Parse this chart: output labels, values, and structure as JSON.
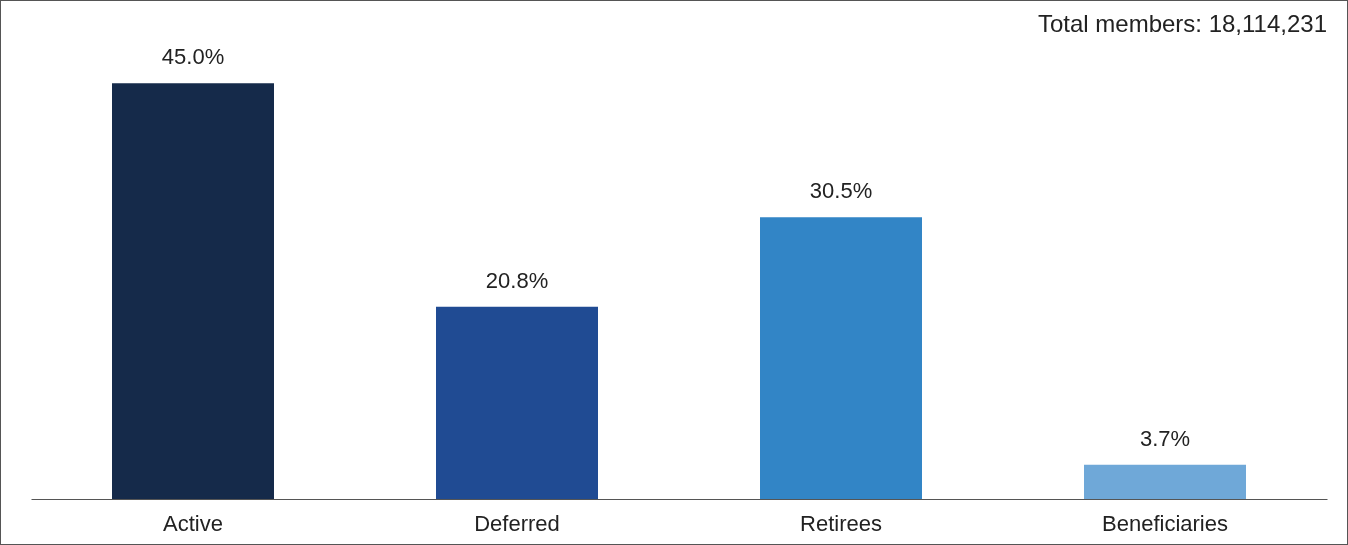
{
  "chart_data": {
    "type": "bar",
    "categories": [
      "Active",
      "Deferred",
      "Retirees",
      "Beneficiaries"
    ],
    "values": [
      45.0,
      20.8,
      30.5,
      3.7
    ],
    "colors": [
      "#152a4a",
      "#204b93",
      "#3285c6",
      "#6fa8d8"
    ],
    "value_labels": [
      "45.0%",
      "20.8%",
      "30.5%",
      "3.7%"
    ],
    "annotations": [
      "Total members: 18,114,231"
    ]
  }
}
